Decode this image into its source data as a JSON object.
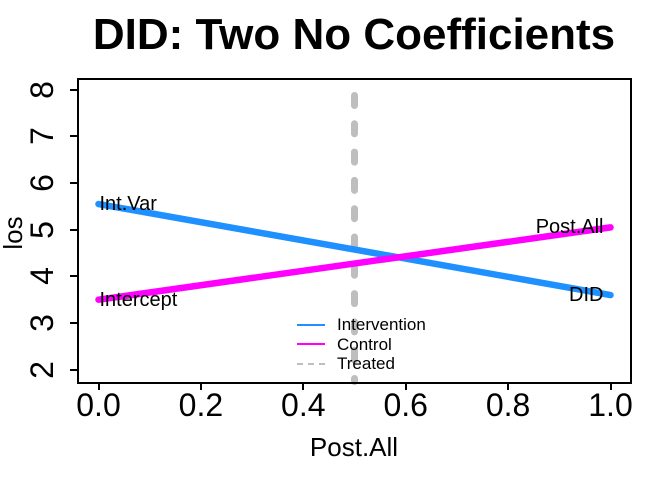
{
  "title": "DID: Two No Coefficients",
  "chart_data": {
    "type": "line",
    "title": "DID: Two No Coefficients",
    "xlabel": "Post.All",
    "ylabel": "los",
    "xlim": [
      0,
      1
    ],
    "ylim": [
      2,
      8
    ],
    "grid": false,
    "x_ticks": [
      0.0,
      0.2,
      0.4,
      0.6,
      0.8,
      1.0
    ],
    "x_tick_labels": [
      "0.0",
      "0.2",
      "0.4",
      "0.6",
      "0.8",
      "1.0"
    ],
    "y_ticks": [
      2,
      3,
      4,
      5,
      6,
      7,
      8
    ],
    "y_tick_labels": [
      "2",
      "3",
      "4",
      "5",
      "6",
      "7",
      "8"
    ],
    "series": [
      {
        "name": "Intervention",
        "color": "#1E90FF",
        "style": "solid",
        "x": [
          0,
          1
        ],
        "y": [
          5.55,
          3.6
        ]
      },
      {
        "name": "Control",
        "color": "#FF00FF",
        "style": "solid",
        "x": [
          0,
          1
        ],
        "y": [
          3.5,
          5.05
        ]
      }
    ],
    "vline": {
      "name": "Treated",
      "x": 0.5,
      "color": "#BEBEBE",
      "style": "dashed"
    },
    "annotations": [
      {
        "text": "Int.Var",
        "x": 0,
        "y": 5.55,
        "pos": "right"
      },
      {
        "text": "Post.All",
        "x": 1,
        "y": 5.05,
        "pos": "left"
      },
      {
        "text": "Intercept",
        "x": 0,
        "y": 3.5,
        "pos": "right"
      },
      {
        "text": "DID",
        "x": 1,
        "y": 3.6,
        "pos": "left"
      }
    ],
    "legend": {
      "position": "inside-bottom-center",
      "entries": [
        {
          "label": "Intervention",
          "color": "#1E90FF",
          "dashed": false
        },
        {
          "label": "Control",
          "color": "#FF00FF",
          "dashed": false
        },
        {
          "label": "Treated",
          "color": "#BEBEBE",
          "dashed": true
        }
      ]
    }
  }
}
